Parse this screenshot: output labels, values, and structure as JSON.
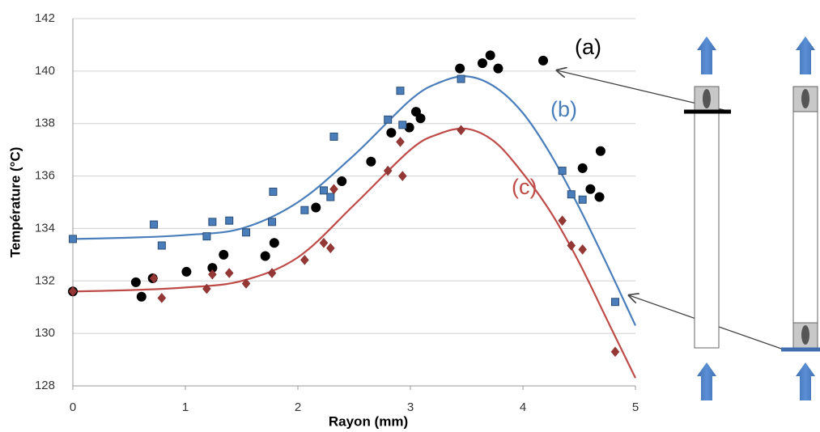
{
  "chart_data": {
    "type": "scatter",
    "x_label": "Rayon (mm)",
    "y_label": "Température (°C)",
    "xlim": [
      0,
      5
    ],
    "xticks": [
      0,
      1,
      2,
      3,
      4,
      5
    ],
    "ylim": [
      128,
      142
    ],
    "yticks": [
      128,
      130,
      132,
      134,
      136,
      138,
      140,
      142
    ],
    "grid": true,
    "series": [
      {
        "name": "(a)",
        "color": "#000000",
        "marker": "circle",
        "x": [
          0,
          0.56,
          0.61,
          0.71,
          1.01,
          1.24,
          1.34,
          1.71,
          1.79,
          2.16,
          2.39,
          2.65,
          2.83,
          2.99,
          3.05,
          3.09,
          3.44,
          3.64,
          3.71,
          3.78,
          4.18,
          4.53,
          4.6,
          4.69,
          4.68
        ],
        "values": [
          131.6,
          131.95,
          131.4,
          132.1,
          132.35,
          132.5,
          133.0,
          132.95,
          133.45,
          134.8,
          135.8,
          136.55,
          137.65,
          137.85,
          138.45,
          138.2,
          140.1,
          140.3,
          140.6,
          140.1,
          140.4,
          136.3,
          135.5,
          136.95,
          135.2
        ]
      },
      {
        "name": "(b)",
        "color": "#4a7ebb",
        "marker": "square",
        "x": [
          0,
          0.72,
          0.79,
          1.19,
          1.24,
          1.39,
          1.54,
          1.77,
          1.78,
          2.06,
          2.23,
          2.29,
          2.32,
          2.8,
          2.91,
          2.93,
          3.45,
          4.35,
          4.43,
          4.53,
          4.82
        ],
        "values": [
          133.6,
          134.15,
          133.35,
          133.7,
          134.25,
          134.3,
          133.85,
          134.25,
          135.4,
          134.7,
          135.45,
          135.2,
          137.5,
          138.15,
          139.25,
          137.95,
          139.7,
          136.2,
          135.3,
          135.1,
          131.2
        ],
        "fit": {
          "x": [
            0,
            0.5,
            1,
            1.5,
            2,
            2.5,
            3,
            3.25,
            3.5,
            3.75,
            4,
            4.25,
            4.5,
            4.75,
            5
          ],
          "values": [
            133.6,
            133.65,
            133.75,
            134.0,
            135.0,
            136.8,
            138.9,
            139.55,
            139.8,
            139.4,
            138.4,
            136.8,
            134.8,
            132.6,
            130.3
          ]
        }
      },
      {
        "name": "(c)",
        "color": "#be4b48",
        "marker": "diamond",
        "x": [
          0,
          0.72,
          0.79,
          1.19,
          1.24,
          1.39,
          1.54,
          1.77,
          2.06,
          2.23,
          2.29,
          2.32,
          2.8,
          2.91,
          2.93,
          3.45,
          4.35,
          4.43,
          4.53,
          4.82
        ],
        "values": [
          131.6,
          132.1,
          131.35,
          131.7,
          132.25,
          132.3,
          131.9,
          132.3,
          132.8,
          133.45,
          133.25,
          135.5,
          136.2,
          137.3,
          136.0,
          137.75,
          134.3,
          133.35,
          133.2,
          129.3
        ],
        "fit": {
          "x": [
            0,
            0.5,
            1,
            1.5,
            2,
            2.5,
            3,
            3.25,
            3.5,
            3.75,
            4,
            4.25,
            4.5,
            4.75,
            5
          ],
          "values": [
            131.6,
            131.65,
            131.75,
            132.0,
            132.9,
            134.9,
            137.0,
            137.6,
            137.8,
            137.3,
            136.1,
            134.6,
            132.7,
            130.5,
            128.3
          ]
        }
      }
    ]
  }
}
